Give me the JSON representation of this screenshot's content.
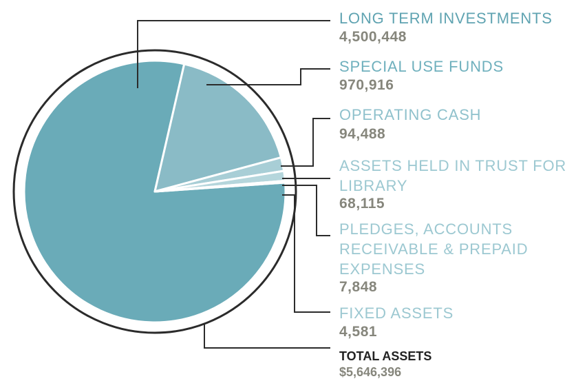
{
  "chart_data": {
    "type": "pie",
    "categories": [
      "LONG TERM INVESTMENTS",
      "SPECIAL USE FUNDS",
      "OPERATING CASH",
      "ASSETS HELD IN TRUST FOR LIBRARY",
      "PLEDGES, ACCOUNTS RECEIVABLE & PREPAID EXPENSES",
      "FIXED ASSETS"
    ],
    "values": [
      4500448,
      970916,
      94488,
      68115,
      7848,
      4581
    ],
    "value_labels": [
      "4,500,448",
      "970,916",
      "94,488",
      "68,115",
      "7,848",
      "4,581"
    ],
    "colors": [
      "#6aabb8",
      "#8abbc6",
      "#a8ced6",
      "#b5d6dc",
      "#c2dde2",
      "#cde3e7"
    ],
    "total_label": "TOTAL ASSETS",
    "total_value_label": "$5,646,396"
  }
}
